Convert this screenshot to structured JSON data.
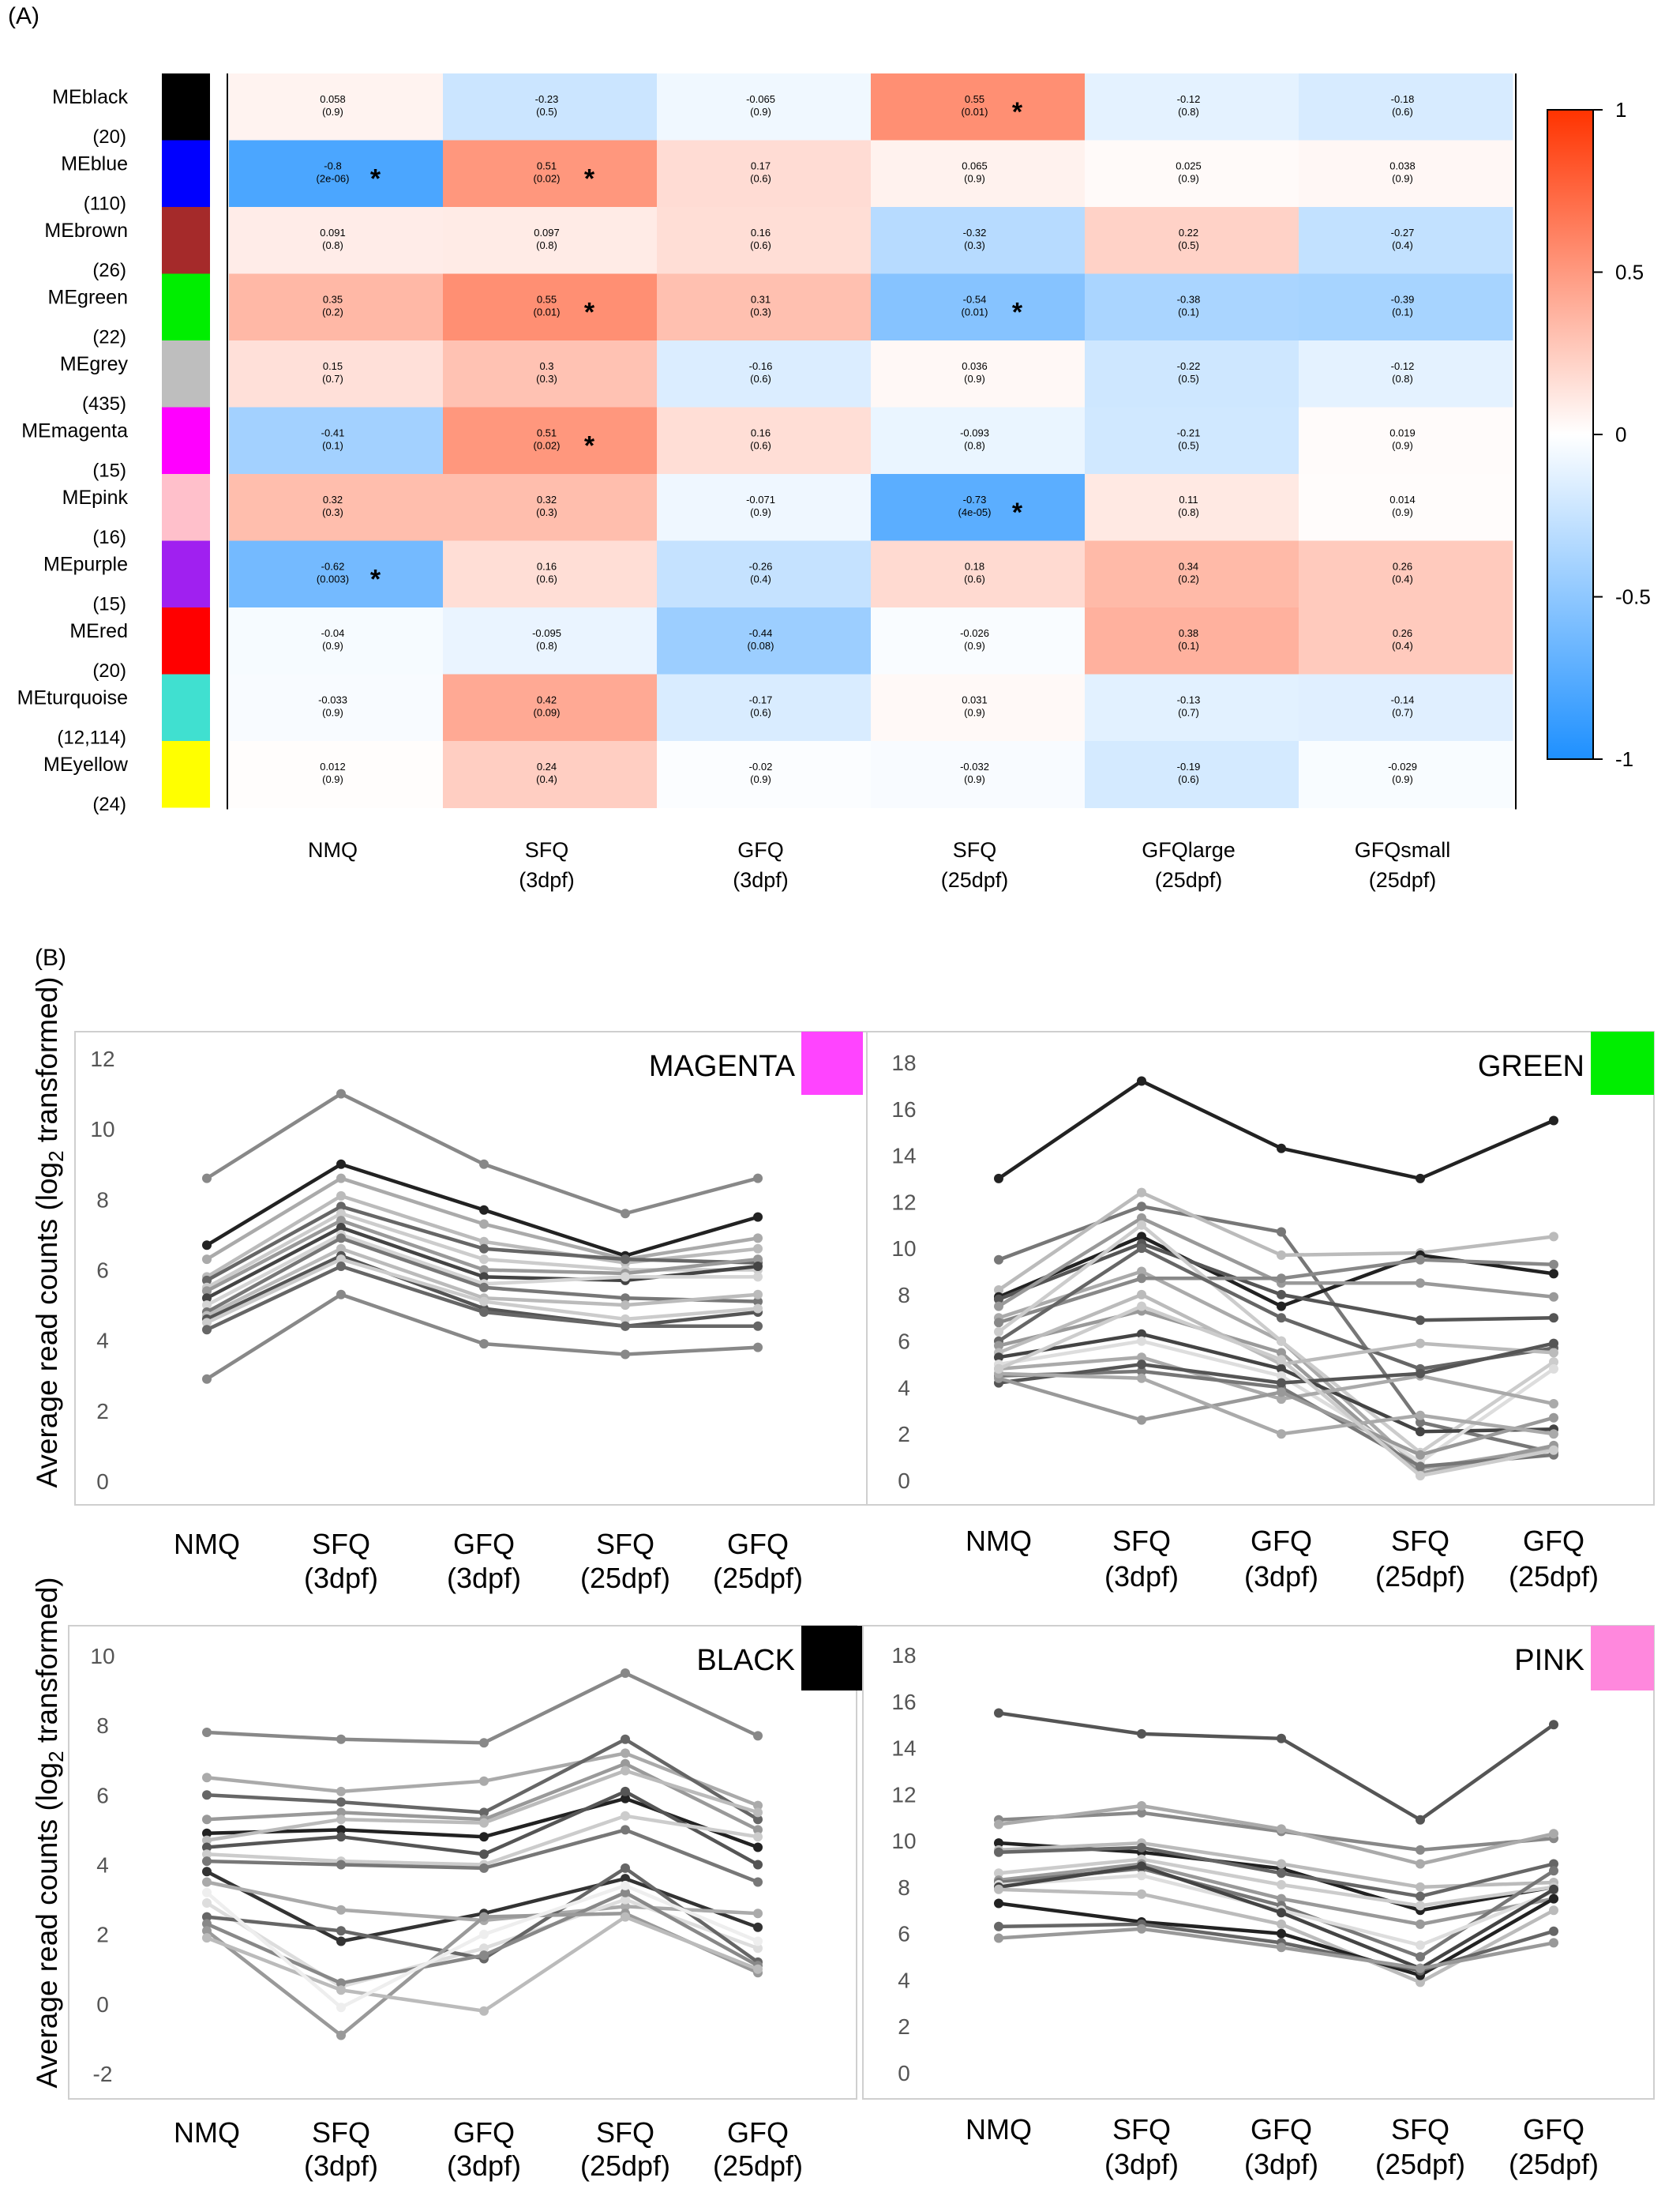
{
  "panel_a_label": "(A)",
  "panel_b_label": "(B)",
  "chart_data": [
    {
      "type": "heatmap",
      "rows": [
        {
          "label": "MEblack",
          "count": "(20)",
          "color": "#000000"
        },
        {
          "label": "MEblue",
          "count": "(110)",
          "color": "#0000ff"
        },
        {
          "label": "MEbrown",
          "count": "(26)",
          "color": "#a52a2a"
        },
        {
          "label": "MEgreen",
          "count": "(22)",
          "color": "#00ee00"
        },
        {
          "label": "MEgrey",
          "count": "(435)",
          "color": "#bebebe"
        },
        {
          "label": "MEmagenta",
          "count": "(15)",
          "color": "#ff00ff"
        },
        {
          "label": "MEpink",
          "count": "(16)",
          "color": "#ffc0cb"
        },
        {
          "label": "MEpurple",
          "count": "(15)",
          "color": "#a020f0"
        },
        {
          "label": "MEred",
          "count": "(20)",
          "color": "#ff0000"
        },
        {
          "label": "MEturquoise",
          "count": "(12,114)",
          "color": "#40e0d0"
        },
        {
          "label": "MEyellow",
          "count": "(24)",
          "color": "#ffff00"
        }
      ],
      "columns": [
        [
          "NMQ"
        ],
        [
          "SFQ",
          "(3dpf)"
        ],
        [
          "GFQ",
          "(3dpf)"
        ],
        [
          "SFQ",
          "(25dpf)"
        ],
        [
          "GFQlarge",
          "(25dpf)"
        ],
        [
          "GFQsmall",
          "(25dpf)"
        ]
      ],
      "values": [
        [
          "0.058",
          "-0.23",
          "-0.065",
          "0.55",
          "-0.12",
          "-0.18"
        ],
        [
          "-0.8",
          "0.51",
          "0.17",
          "0.065",
          "0.025",
          "0.038"
        ],
        [
          "0.091",
          "0.097",
          "0.16",
          "-0.32",
          "0.22",
          "-0.27"
        ],
        [
          "0.35",
          "0.55",
          "0.31",
          "-0.54",
          "-0.38",
          "-0.39"
        ],
        [
          "0.15",
          "0.3",
          "-0.16",
          "0.036",
          "-0.22",
          "-0.12"
        ],
        [
          "-0.41",
          "0.51",
          "0.16",
          "-0.093",
          "-0.21",
          "0.019"
        ],
        [
          "0.32",
          "0.32",
          "-0.071",
          "-0.73",
          "0.11",
          "0.014"
        ],
        [
          "-0.62",
          "0.16",
          "-0.26",
          "0.18",
          "0.34",
          "0.26"
        ],
        [
          "-0.04",
          "-0.095",
          "-0.44",
          "-0.026",
          "0.38",
          "0.26"
        ],
        [
          "-0.033",
          "0.42",
          "-0.17",
          "0.031",
          "-0.13",
          "-0.14"
        ],
        [
          "0.012",
          "0.24",
          "-0.02",
          "-0.032",
          "-0.19",
          "-0.029"
        ]
      ],
      "pvalues": [
        [
          "(0.9)",
          "(0.5)",
          "(0.9)",
          "(0.01)",
          "(0.8)",
          "(0.6)"
        ],
        [
          "(2e-06)",
          "(0.02)",
          "(0.6)",
          "(0.9)",
          "(0.9)",
          "(0.9)"
        ],
        [
          "(0.8)",
          "(0.8)",
          "(0.6)",
          "(0.3)",
          "(0.5)",
          "(0.4)"
        ],
        [
          "(0.2)",
          "(0.01)",
          "(0.3)",
          "(0.01)",
          "(0.1)",
          "(0.1)"
        ],
        [
          "(0.7)",
          "(0.3)",
          "(0.6)",
          "(0.9)",
          "(0.5)",
          "(0.8)"
        ],
        [
          "(0.1)",
          "(0.02)",
          "(0.6)",
          "(0.8)",
          "(0.5)",
          "(0.9)"
        ],
        [
          "(0.3)",
          "(0.3)",
          "(0.9)",
          "(4e-05)",
          "(0.8)",
          "(0.9)"
        ],
        [
          "(0.003)",
          "(0.6)",
          "(0.4)",
          "(0.6)",
          "(0.2)",
          "(0.4)"
        ],
        [
          "(0.9)",
          "(0.8)",
          "(0.08)",
          "(0.9)",
          "(0.1)",
          "(0.4)"
        ],
        [
          "(0.9)",
          "(0.09)",
          "(0.6)",
          "(0.9)",
          "(0.7)",
          "(0.7)"
        ],
        [
          "(0.9)",
          "(0.4)",
          "(0.9)",
          "(0.9)",
          "(0.6)",
          "(0.9)"
        ]
      ],
      "significant": [
        [
          0,
          3
        ],
        [
          1,
          0
        ],
        [
          1,
          1
        ],
        [
          3,
          1
        ],
        [
          3,
          3
        ],
        [
          5,
          1
        ],
        [
          6,
          3
        ],
        [
          7,
          0
        ]
      ],
      "star_symbol": "*",
      "colorbar": {
        "range": [
          -1,
          1
        ],
        "ticks": [
          "1",
          "0.5",
          "0",
          "-0.5",
          "-1"
        ],
        "colors": {
          "low": "#1e90ff",
          "mid": "#ffffff",
          "high": "#ff3300"
        }
      }
    },
    {
      "type": "line",
      "title": "MAGENTA",
      "swatch": "#ff44ff",
      "ylabel": "Average read counts (log2 transformed)",
      "categories": [
        [
          "NMQ"
        ],
        [
          "SFQ",
          "(3dpf)"
        ],
        [
          "GFQ",
          "(3dpf)"
        ],
        [
          "SFQ",
          "(25dpf)"
        ],
        [
          "GFQ",
          "(25dpf)"
        ]
      ],
      "ylim": [
        0,
        12
      ],
      "yticks": [
        "0",
        "2",
        "4",
        "6",
        "8",
        "10",
        "12"
      ],
      "series": [
        {
          "color": "#888888",
          "values": [
            8.6,
            11.0,
            9.0,
            7.6,
            8.6
          ]
        },
        {
          "color": "#222222",
          "values": [
            6.7,
            9.0,
            7.7,
            6.4,
            7.5
          ]
        },
        {
          "color": "#aaaaaa",
          "values": [
            6.3,
            8.6,
            7.3,
            6.3,
            6.9
          ]
        },
        {
          "color": "#bbbbbb",
          "values": [
            5.8,
            8.1,
            6.8,
            6.2,
            6.6
          ]
        },
        {
          "color": "#666666",
          "values": [
            5.7,
            7.8,
            6.6,
            6.3,
            6.2
          ]
        },
        {
          "color": "#cccccc",
          "values": [
            5.5,
            7.6,
            6.3,
            6.0,
            6.0
          ]
        },
        {
          "color": "#999999",
          "values": [
            5.4,
            7.4,
            6.0,
            5.9,
            6.3
          ]
        },
        {
          "color": "#444444",
          "values": [
            5.2,
            7.2,
            5.8,
            5.7,
            6.1
          ]
        },
        {
          "color": "#d5d5d5",
          "values": [
            5.0,
            7.0,
            5.6,
            5.8,
            5.8
          ]
        },
        {
          "color": "#777777",
          "values": [
            4.8,
            6.9,
            5.5,
            5.2,
            5.1
          ]
        },
        {
          "color": "#bbbbbb",
          "values": [
            4.7,
            6.6,
            5.2,
            5.0,
            5.3
          ]
        },
        {
          "color": "#555555",
          "values": [
            4.6,
            6.4,
            4.9,
            4.4,
            4.8
          ]
        },
        {
          "color": "#cccccc",
          "values": [
            4.5,
            6.3,
            5.1,
            4.6,
            4.9
          ]
        },
        {
          "color": "#666666",
          "values": [
            4.3,
            6.1,
            4.8,
            4.4,
            4.4
          ]
        },
        {
          "color": "#888888",
          "values": [
            2.9,
            5.3,
            3.9,
            3.6,
            3.8
          ]
        }
      ]
    },
    {
      "type": "line",
      "title": "GREEN",
      "swatch": "#00ee00",
      "ylabel": "",
      "categories": [
        [
          "NMQ"
        ],
        [
          "SFQ",
          "(3dpf)"
        ],
        [
          "GFQ",
          "(3dpf)"
        ],
        [
          "SFQ",
          "(25dpf)"
        ],
        [
          "GFQ",
          "(25dpf)"
        ]
      ],
      "ylim": [
        0,
        18
      ],
      "yticks": [
        "0",
        "2",
        "4",
        "6",
        "8",
        "10",
        "12",
        "14",
        "16",
        "18"
      ],
      "series": [
        {
          "color": "#222222",
          "values": [
            13.0,
            17.2,
            14.3,
            13.0,
            15.5
          ]
        },
        {
          "color": "#777777",
          "values": [
            9.5,
            11.8,
            10.7,
            2.5,
            1.2
          ]
        },
        {
          "color": "#bbbbbb",
          "values": [
            8.2,
            12.4,
            9.7,
            9.8,
            10.5
          ]
        },
        {
          "color": "#222222",
          "values": [
            7.9,
            10.5,
            7.5,
            9.7,
            8.9
          ]
        },
        {
          "color": "#555555",
          "values": [
            7.8,
            10.2,
            8.0,
            6.9,
            7.0
          ]
        },
        {
          "color": "#999999",
          "values": [
            7.5,
            11.3,
            8.5,
            8.5,
            7.9
          ]
        },
        {
          "color": "#aaaaaa",
          "values": [
            7.0,
            9.0,
            6.0,
            0.5,
            1.4
          ]
        },
        {
          "color": "#888888",
          "values": [
            6.8,
            8.7,
            8.7,
            9.5,
            9.3
          ]
        },
        {
          "color": "#cccccc",
          "values": [
            6.4,
            11.0,
            6.0,
            1.2,
            5.1
          ]
        },
        {
          "color": "#666666",
          "values": [
            6.0,
            10.0,
            7.0,
            4.8,
            5.7
          ]
        },
        {
          "color": "#999999",
          "values": [
            5.8,
            7.3,
            5.5,
            0.3,
            1.5
          ]
        },
        {
          "color": "#bbbbbb",
          "values": [
            5.5,
            8.0,
            5.0,
            5.9,
            5.5
          ]
        },
        {
          "color": "#444444",
          "values": [
            5.3,
            6.3,
            4.8,
            2.1,
            2.2
          ]
        },
        {
          "color": "#dddddd",
          "values": [
            5.0,
            6.0,
            4.5,
            0.8,
            4.8
          ]
        },
        {
          "color": "#aaaaaa",
          "values": [
            4.8,
            5.3,
            3.5,
            4.5,
            3.3
          ]
        },
        {
          "color": "#777777",
          "values": [
            4.5,
            4.7,
            4.0,
            0.6,
            1.1
          ]
        },
        {
          "color": "#555555",
          "values": [
            4.2,
            5.0,
            4.2,
            4.6,
            5.9
          ]
        },
        {
          "color": "#999999",
          "values": [
            4.4,
            2.6,
            3.8,
            1.1,
            2.7
          ]
        },
        {
          "color": "#aaaaaa",
          "values": [
            4.6,
            4.4,
            2.0,
            2.8,
            2.0
          ]
        },
        {
          "color": "#cccccc",
          "values": [
            4.8,
            7.5,
            5.2,
            0.2,
            1.3
          ]
        }
      ]
    },
    {
      "type": "line",
      "title": "BLACK",
      "swatch": "#000000",
      "ylabel": "Average read counts (log2 transformed)",
      "categories": [
        [
          "NMQ"
        ],
        [
          "SFQ",
          "(3dpf)"
        ],
        [
          "GFQ",
          "(3dpf)"
        ],
        [
          "SFQ",
          "(25dpf)"
        ],
        [
          "GFQ",
          "(25dpf)"
        ]
      ],
      "ylim": [
        -2,
        10
      ],
      "yticks": [
        "-2",
        "0",
        "2",
        "4",
        "6",
        "8",
        "10"
      ],
      "series": [
        {
          "color": "#888888",
          "values": [
            7.8,
            7.6,
            7.5,
            9.5,
            7.7
          ]
        },
        {
          "color": "#aaaaaa",
          "values": [
            6.5,
            6.1,
            6.4,
            7.2,
            5.7
          ]
        },
        {
          "color": "#666666",
          "values": [
            6.0,
            5.8,
            5.5,
            7.6,
            5.3
          ]
        },
        {
          "color": "#999999",
          "values": [
            5.3,
            5.5,
            5.3,
            6.9,
            5.0
          ]
        },
        {
          "color": "#222222",
          "values": [
            4.9,
            5.0,
            4.8,
            5.9,
            4.5
          ]
        },
        {
          "color": "#bbbbbb",
          "values": [
            4.7,
            5.3,
            5.2,
            6.7,
            5.5
          ]
        },
        {
          "color": "#555555",
          "values": [
            4.5,
            4.8,
            4.3,
            6.1,
            4.0
          ]
        },
        {
          "color": "#cccccc",
          "values": [
            4.3,
            4.1,
            4.0,
            5.4,
            4.8
          ]
        },
        {
          "color": "#777777",
          "values": [
            4.1,
            4.0,
            3.9,
            5.0,
            3.5
          ]
        },
        {
          "color": "#333333",
          "values": [
            3.8,
            1.8,
            2.6,
            3.6,
            2.2
          ]
        },
        {
          "color": "#aaaaaa",
          "values": [
            3.5,
            2.7,
            2.4,
            2.8,
            2.6
          ]
        },
        {
          "color": "#dddddd",
          "values": [
            2.9,
            0.5,
            1.6,
            3.0,
            1.6
          ]
        },
        {
          "color": "#666666",
          "values": [
            2.5,
            2.1,
            1.3,
            3.9,
            1.2
          ]
        },
        {
          "color": "#888888",
          "values": [
            2.3,
            0.6,
            1.4,
            3.2,
            1.1
          ]
        },
        {
          "color": "#999999",
          "values": [
            2.1,
            -0.9,
            2.5,
            2.6,
            0.9
          ]
        },
        {
          "color": "#bbbbbb",
          "values": [
            1.9,
            0.4,
            -0.2,
            2.5,
            1.0
          ]
        },
        {
          "color": "#eeeeee",
          "values": [
            3.2,
            -0.1,
            2.0,
            3.4,
            1.8
          ]
        }
      ]
    },
    {
      "type": "line",
      "title": "PINK",
      "swatch": "#ff88dd",
      "ylabel": "",
      "categories": [
        [
          "NMQ"
        ],
        [
          "SFQ",
          "(3dpf)"
        ],
        [
          "GFQ",
          "(3dpf)"
        ],
        [
          "SFQ",
          "(25dpf)"
        ],
        [
          "GFQ",
          "(25dpf)"
        ]
      ],
      "ylim": [
        0,
        18
      ],
      "yticks": [
        "0",
        "2",
        "4",
        "6",
        "8",
        "10",
        "12",
        "14",
        "16",
        "18"
      ],
      "series": [
        {
          "color": "#555555",
          "values": [
            15.5,
            14.6,
            14.4,
            10.9,
            15.0
          ]
        },
        {
          "color": "#888888",
          "values": [
            10.9,
            11.2,
            10.4,
            9.6,
            10.1
          ]
        },
        {
          "color": "#aaaaaa",
          "values": [
            10.7,
            11.5,
            10.5,
            9.0,
            10.3
          ]
        },
        {
          "color": "#222222",
          "values": [
            9.9,
            9.5,
            8.8,
            7.0,
            8.0
          ]
        },
        {
          "color": "#bbbbbb",
          "values": [
            9.6,
            9.9,
            9.0,
            8.0,
            8.2
          ]
        },
        {
          "color": "#666666",
          "values": [
            9.5,
            9.7,
            8.6,
            7.6,
            9.0
          ]
        },
        {
          "color": "#cccccc",
          "values": [
            8.6,
            9.2,
            8.1,
            7.2,
            8.0
          ]
        },
        {
          "color": "#999999",
          "values": [
            8.3,
            9.0,
            7.5,
            6.4,
            7.5
          ]
        },
        {
          "color": "#777777",
          "values": [
            8.2,
            8.8,
            7.2,
            5.0,
            8.7
          ]
        },
        {
          "color": "#dddddd",
          "values": [
            8.1,
            8.5,
            7.0,
            5.5,
            7.8
          ]
        },
        {
          "color": "#444444",
          "values": [
            8.0,
            8.9,
            6.9,
            4.5,
            7.9
          ]
        },
        {
          "color": "#bbbbbb",
          "values": [
            7.9,
            7.7,
            6.4,
            3.9,
            7.0
          ]
        },
        {
          "color": "#222222",
          "values": [
            7.3,
            6.5,
            6.0,
            4.2,
            7.5
          ]
        },
        {
          "color": "#666666",
          "values": [
            6.3,
            6.4,
            5.6,
            4.4,
            6.1
          ]
        },
        {
          "color": "#999999",
          "values": [
            5.8,
            6.2,
            5.4,
            4.5,
            5.6
          ]
        }
      ]
    }
  ]
}
